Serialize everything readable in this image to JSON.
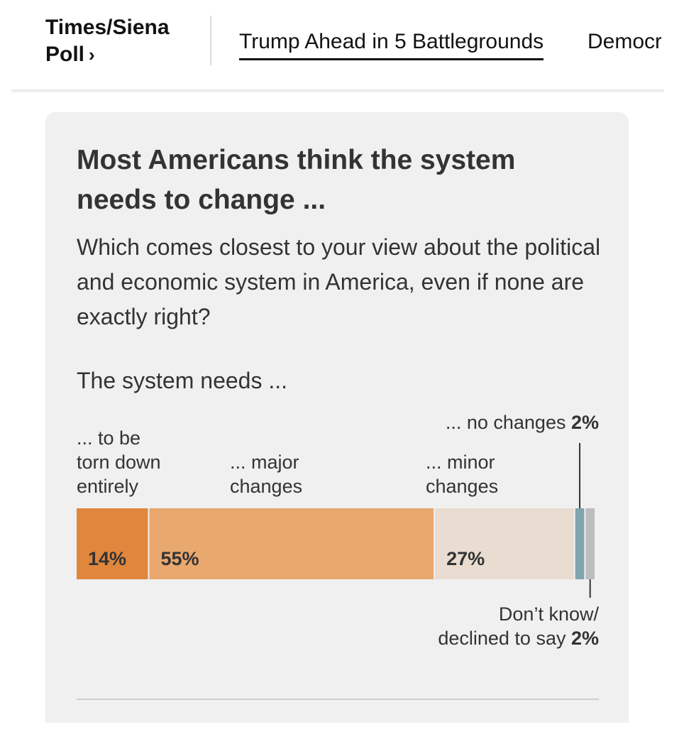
{
  "nav": {
    "brand_line1": "Times/Siena",
    "brand_line2": "Poll",
    "brand_chevron": "›",
    "active_tab": "Trump Ahead in 5 Battlegrounds",
    "next_tab": "Democr"
  },
  "card": {
    "title": "Most Americans think the system needs to change ...",
    "question": "Which comes closest to your view about the political and economic system in America, even if none are exactly right?",
    "stem": "The system needs ..."
  },
  "chart_data": {
    "type": "bar",
    "orientation": "horizontal-stacked",
    "title": "Most Americans think the system needs to change ...",
    "subtitle": "Which comes closest to your view about the political and economic system in America, even if none are exactly right?",
    "stem": "The system needs ...",
    "unit": "%",
    "series": [
      {
        "name": "... to be torn down entirely",
        "label_lines": [
          "... to be",
          "torn down",
          "entirely"
        ],
        "value": 14,
        "display": "14%",
        "color": "#e0873d"
      },
      {
        "name": "... major changes",
        "label_lines": [
          "... major",
          "changes"
        ],
        "value": 55,
        "display": "55%",
        "color": "#e9a86e"
      },
      {
        "name": "... minor changes",
        "label_lines": [
          "... minor",
          "changes"
        ],
        "value": 27,
        "display": "27%",
        "color": "#e8ddd0"
      },
      {
        "name": "... no changes",
        "value": 2,
        "display": "2%",
        "color": "#7fa5ad"
      },
      {
        "name": "Don’t know/ declined to say",
        "value": 2,
        "display": "2%",
        "color": "#bdbdbd"
      }
    ],
    "callouts": {
      "no_changes_text": "... no changes ",
      "no_changes_value": "2%",
      "dk_line1": "Don’t know/",
      "dk_line2": "declined to say ",
      "dk_value": "2%"
    }
  }
}
